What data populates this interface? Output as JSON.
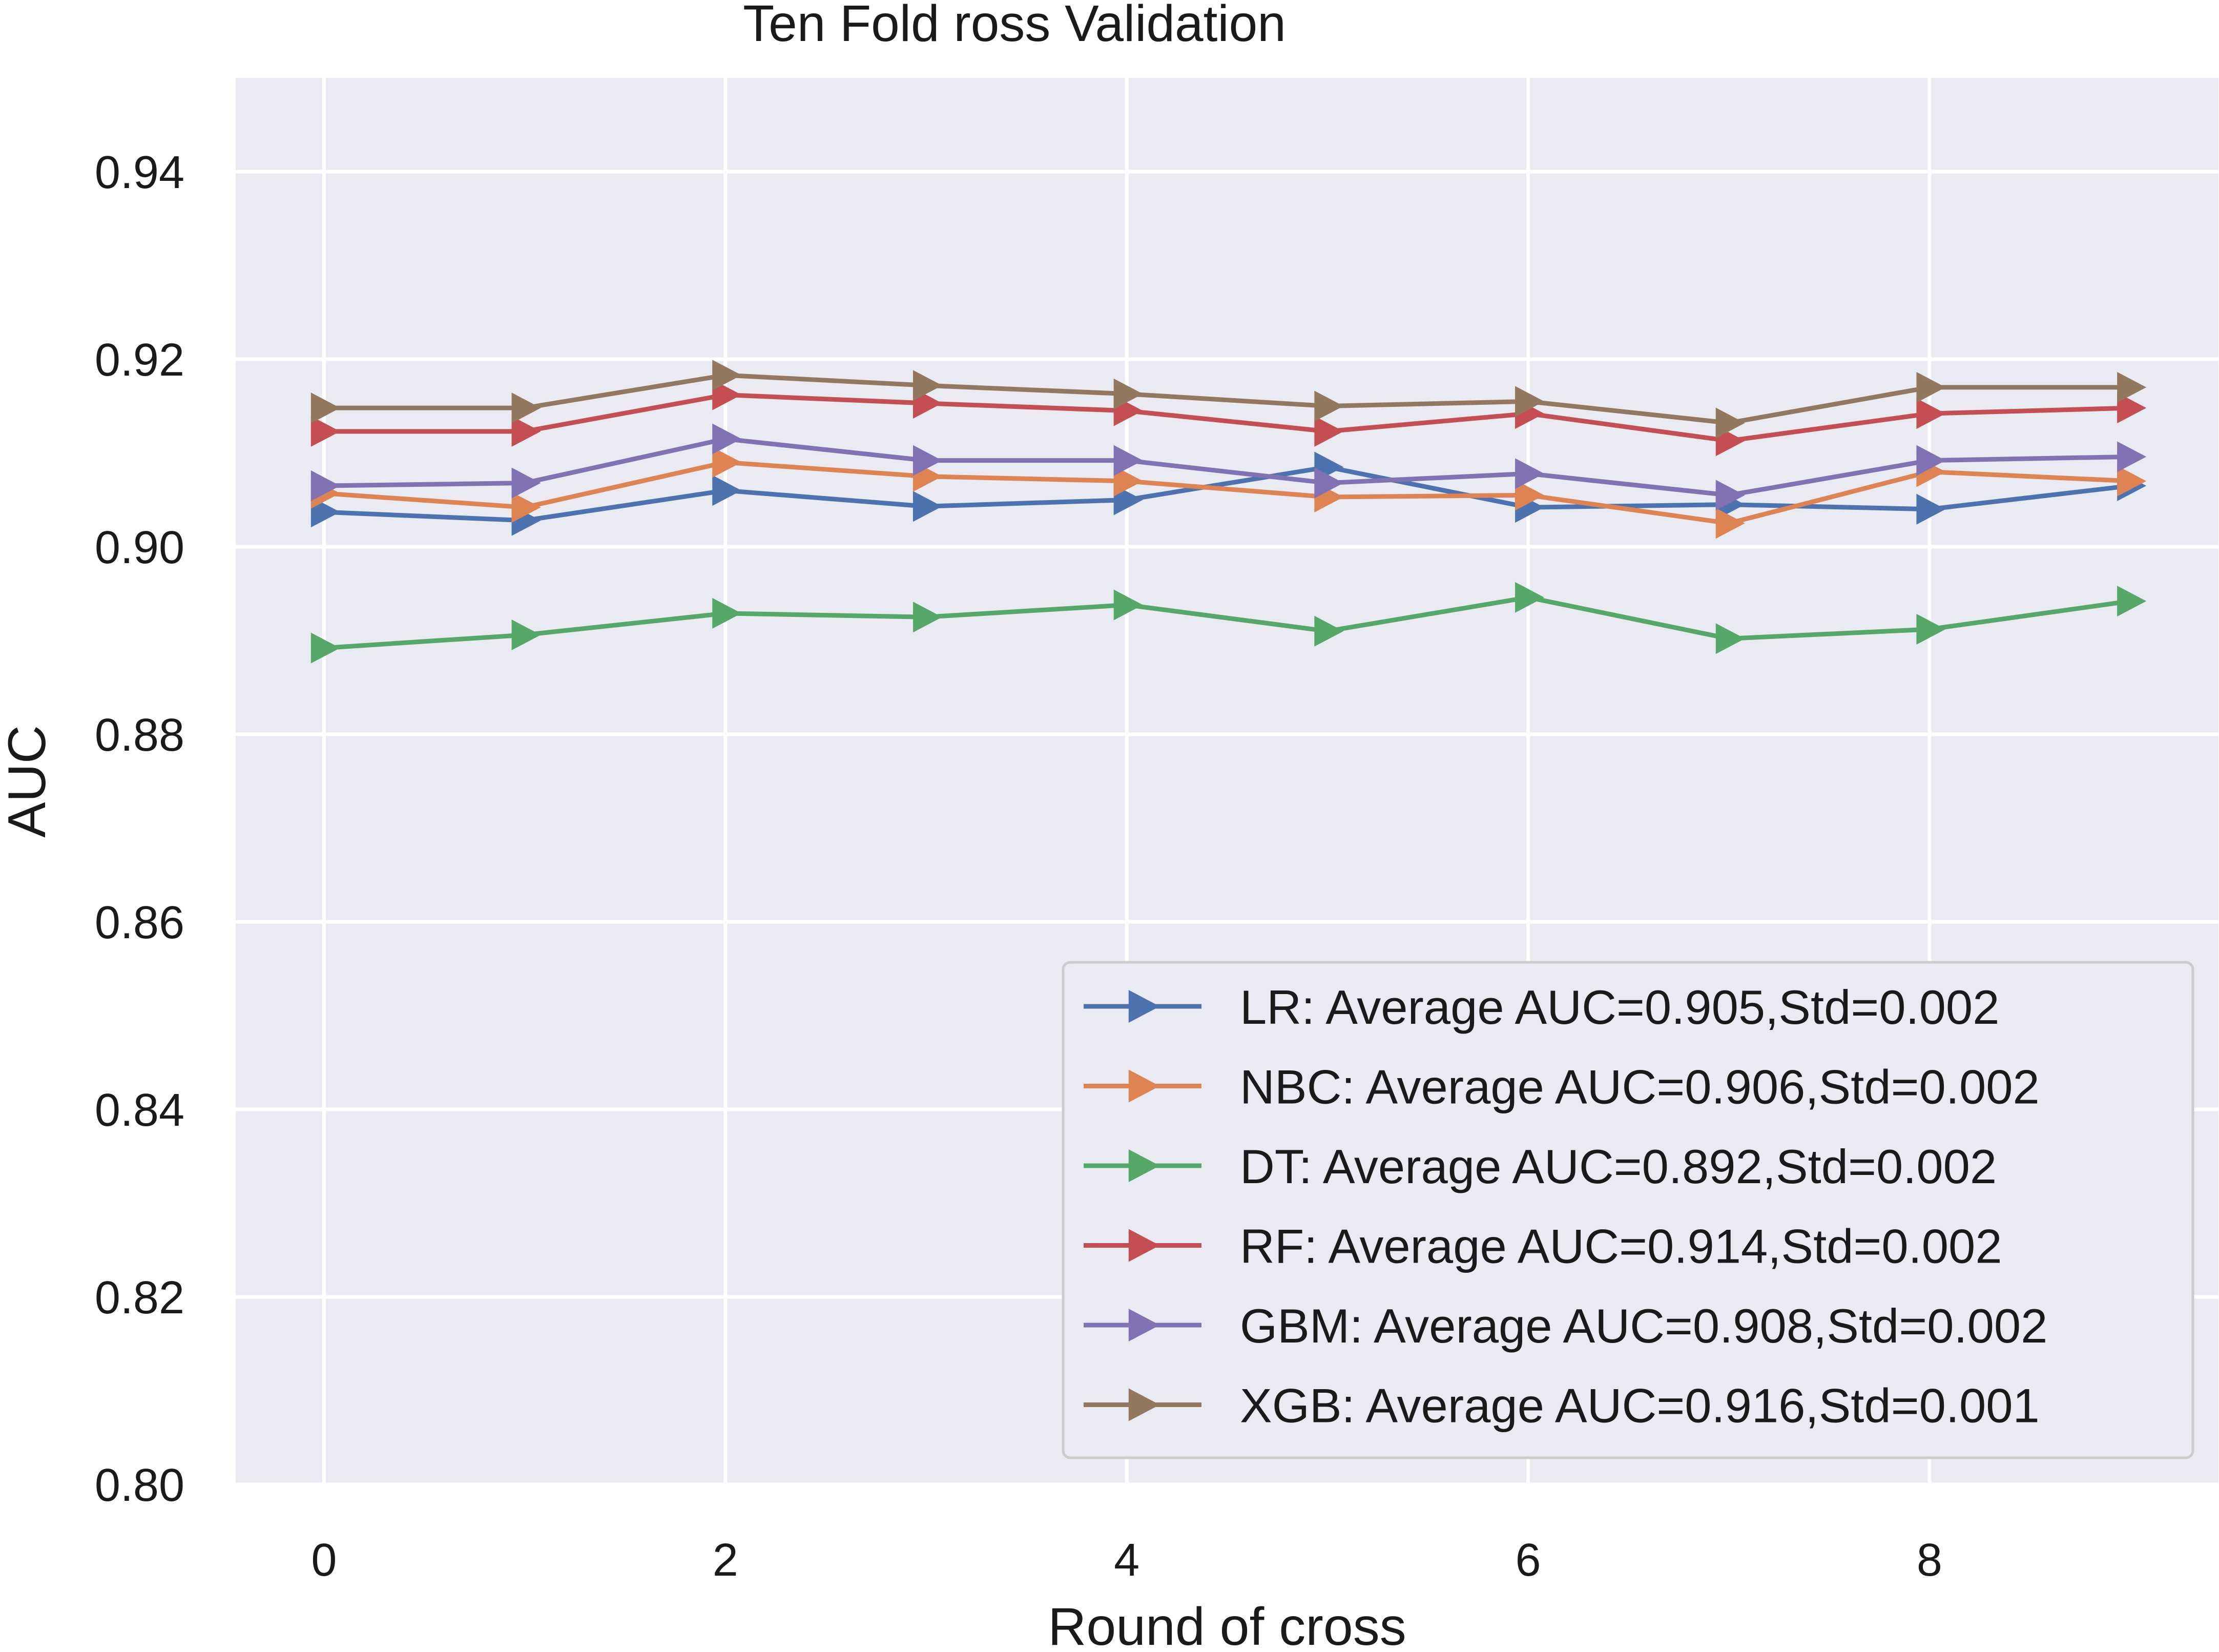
{
  "chart_data": {
    "type": "line",
    "title": "Ten Fold    ross Validation",
    "xlabel": "Round of cross",
    "ylabel": "AUC",
    "xlim": [
      -0.44,
      9.44
    ],
    "ylim": [
      0.8,
      0.95
    ],
    "xticks": [
      0,
      2,
      4,
      6,
      8
    ],
    "xtick_labels": [
      "0",
      "2",
      "4",
      "6",
      "8"
    ],
    "yticks": [
      0.8,
      0.82,
      0.84,
      0.86,
      0.88,
      0.9,
      0.92,
      0.94
    ],
    "ytick_labels": [
      "0.80",
      "0.82",
      "0.84",
      "0.86",
      "0.88",
      "0.90",
      "0.92",
      "0.94"
    ],
    "grid": true,
    "legend_position": "bottom-right",
    "marker": "triangle-right",
    "x": [
      0,
      1,
      2,
      3,
      4,
      5,
      6,
      7,
      8,
      9
    ],
    "series": [
      {
        "name": "LR: Average AUC=0.905,Std=0.002",
        "color": "#4c72b0",
        "values": [
          0.9037,
          0.9028,
          0.906,
          0.9043,
          0.905,
          0.9085,
          0.9042,
          0.9045,
          0.904,
          0.9065
        ]
      },
      {
        "name": "NBC: Average AUC=0.906,Std=0.002",
        "color": "#dd8452",
        "values": [
          0.9057,
          0.9042,
          0.909,
          0.9075,
          0.907,
          0.9053,
          0.9055,
          0.9025,
          0.908,
          0.907
        ]
      },
      {
        "name": "DT: Average AUC=0.892,Std=0.002",
        "color": "#55a868",
        "values": [
          0.8892,
          0.8906,
          0.8929,
          0.8925,
          0.8938,
          0.891,
          0.8946,
          0.8902,
          0.8912,
          0.8942
        ]
      },
      {
        "name": "RF: Average AUC=0.914,Std=0.002",
        "color": "#c44e52",
        "values": [
          0.9123,
          0.9123,
          0.9162,
          0.9153,
          0.9145,
          0.9123,
          0.9142,
          0.9113,
          0.9142,
          0.9148
        ]
      },
      {
        "name": "GBM: Average AUC=0.908,Std=0.002",
        "color": "#8172b3",
        "values": [
          0.9065,
          0.9068,
          0.9115,
          0.9092,
          0.9092,
          0.9068,
          0.9078,
          0.9055,
          0.9092,
          0.9096
        ]
      },
      {
        "name": "XGB: Average AUC=0.916,Std=0.001",
        "color": "#937860",
        "values": [
          0.9148,
          0.9148,
          0.9183,
          0.9172,
          0.9163,
          0.915,
          0.9155,
          0.9132,
          0.917,
          0.917
        ]
      }
    ]
  },
  "colors": {
    "plot_background": "#eaeaf2",
    "grid": "#ffffff",
    "legend_background": "#eaeaf2",
    "legend_border": "#cccccc",
    "text": "#1a1a1a"
  }
}
